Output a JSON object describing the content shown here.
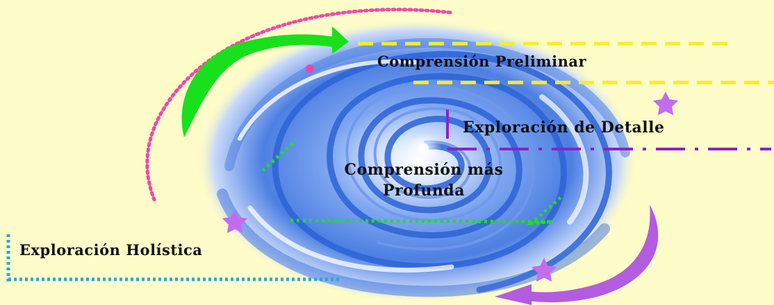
{
  "diagram": {
    "stages": {
      "preliminar": "Comprensión Preliminar",
      "detalle": "Exploración de Detalle",
      "profunda_line1": "Comprensión más",
      "profunda_line2": "Profunda",
      "holistica": "Exploración Holística"
    },
    "colors": {
      "background": "#fefcc8",
      "spiral_blue": "#2b63d6",
      "preliminar_line": "#f5ee2a",
      "detalle_line": "#8a22c9",
      "profunda_line": "#22dd22",
      "holistica_line": "#2aa6e0",
      "pink_arc": "#ee4aa8",
      "green_arrow": "#19e01c",
      "purple_arrow": "#b45ce0",
      "star": "#c36cf0"
    },
    "icons": [
      "star-icon",
      "dot-icon",
      "curved-arrow-icon",
      "swirl-icon"
    ]
  }
}
